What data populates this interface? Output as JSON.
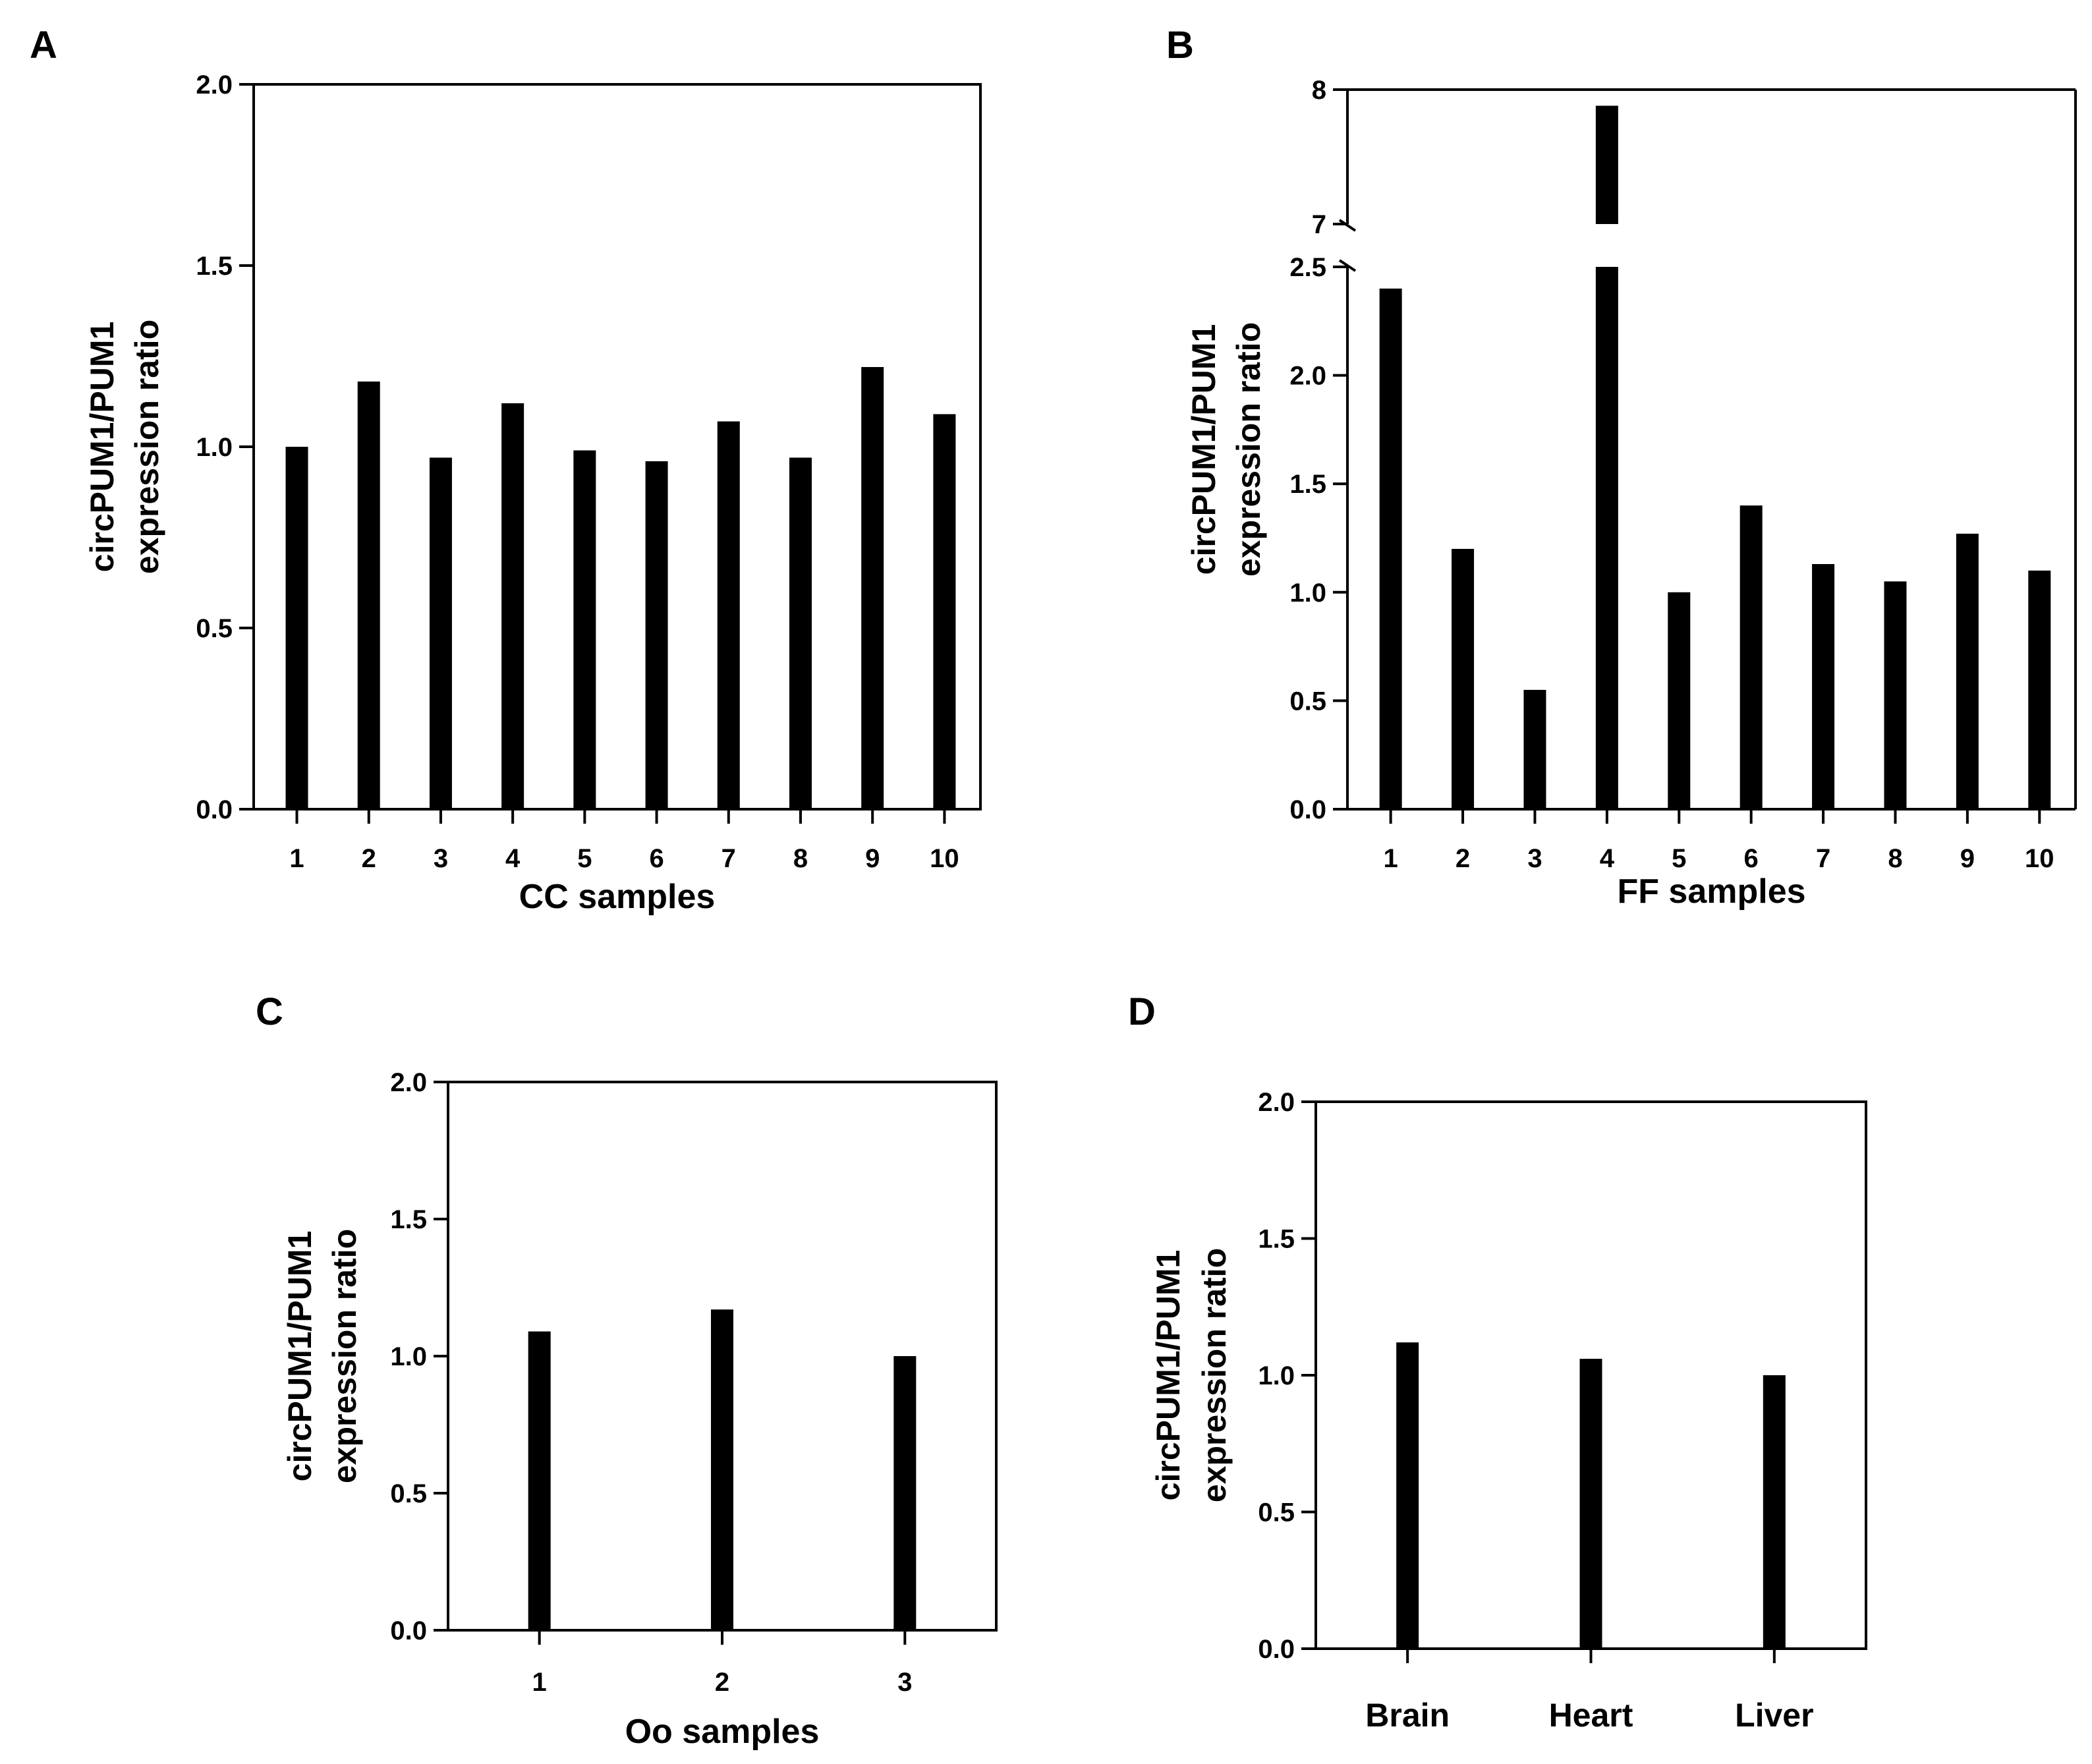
{
  "chart_data": [
    {
      "panel": "A",
      "type": "bar",
      "categories": [
        "1",
        "2",
        "3",
        "4",
        "5",
        "6",
        "7",
        "8",
        "9",
        "10"
      ],
      "values": [
        1.0,
        1.18,
        0.97,
        1.12,
        0.99,
        0.96,
        1.07,
        0.97,
        1.22,
        1.09
      ],
      "xlabel": "CC samples",
      "ylabel": [
        "circPUM1/PUM1",
        "expression ratio"
      ],
      "ylim": [
        0,
        2.0
      ],
      "yticks": [
        "0.0",
        "0.5",
        "1.0",
        "1.5",
        "2.0"
      ],
      "yticks_values": [
        0,
        0.5,
        1.0,
        1.5,
        2.0
      ]
    },
    {
      "panel": "B",
      "type": "bar",
      "categories": [
        "1",
        "2",
        "3",
        "4",
        "5",
        "6",
        "7",
        "8",
        "9",
        "10"
      ],
      "values": [
        2.4,
        1.2,
        0.55,
        7.88,
        1.0,
        1.4,
        1.13,
        1.05,
        1.27,
        1.1
      ],
      "xlabel": "FF samples",
      "ylabel": [
        "circPUM1/PUM1",
        "expression ratio"
      ],
      "ylim": [
        0,
        8
      ],
      "axis_break": [
        2.5,
        7
      ],
      "yticks": [
        "0.0",
        "0.5",
        "1.0",
        "1.5",
        "2.0",
        "2.5",
        "7",
        "8"
      ],
      "yticks_values": [
        0,
        0.5,
        1.0,
        1.5,
        2.0,
        2.5,
        7,
        8
      ]
    },
    {
      "panel": "C",
      "type": "bar",
      "categories": [
        "1",
        "2",
        "3"
      ],
      "values": [
        1.09,
        1.17,
        1.0
      ],
      "xlabel": "Oo samples",
      "ylabel": [
        "circPUM1/PUM1",
        "expression ratio"
      ],
      "ylim": [
        0,
        2.0
      ],
      "yticks": [
        "0.0",
        "0.5",
        "1.0",
        "1.5",
        "2.0"
      ],
      "yticks_values": [
        0,
        0.5,
        1.0,
        1.5,
        2.0
      ]
    },
    {
      "panel": "D",
      "type": "bar",
      "categories": [
        "Brain",
        "Heart",
        "Liver"
      ],
      "values": [
        1.12,
        1.06,
        1.0
      ],
      "xlabel": "",
      "ylabel": [
        "circPUM1/PUM1",
        "expression ratio"
      ],
      "ylim": [
        0,
        2.0
      ],
      "yticks": [
        "0.0",
        "0.5",
        "1.0",
        "1.5",
        "2.0"
      ],
      "yticks_values": [
        0,
        0.5,
        1.0,
        1.5,
        2.0
      ]
    }
  ],
  "colors": {
    "bar": "#000000",
    "axis": "#000000",
    "background": "#ffffff"
  }
}
